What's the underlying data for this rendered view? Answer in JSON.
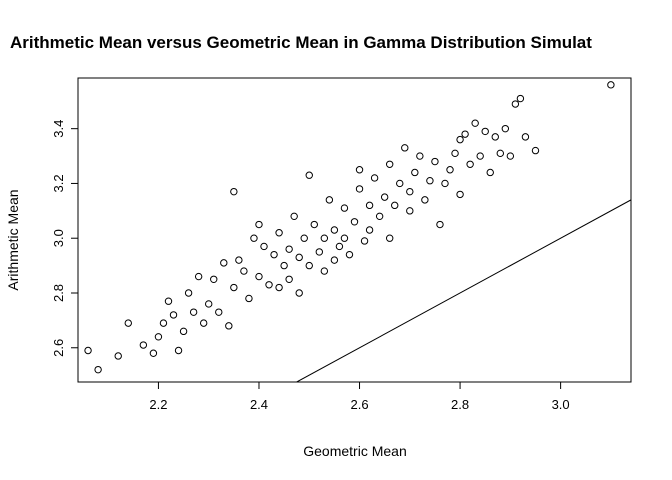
{
  "chart_data": {
    "type": "scatter",
    "title": "Arithmetic Mean versus Geometric Mean in Gamma Distribution Simulat",
    "xlabel": "Geometric Mean",
    "ylabel": "Arithmetic Mean",
    "xlim": [
      2.04,
      3.14
    ],
    "ylim": [
      2.475,
      3.585
    ],
    "xticks": [
      2.2,
      2.4,
      2.6,
      2.8,
      3.0
    ],
    "xtick_labels": [
      "2.2",
      "2.4",
      "2.6",
      "2.8",
      "3.0"
    ],
    "yticks": [
      2.6,
      2.8,
      3.0,
      3.2,
      3.4
    ],
    "ytick_labels": [
      "2.6",
      "2.8",
      "3.0",
      "3.2",
      "3.4"
    ],
    "grid": false,
    "legend": "none",
    "marker": "open-circle",
    "reference_line": {
      "slope": 1,
      "intercept": 0
    },
    "points": [
      [
        2.06,
        2.59
      ],
      [
        2.08,
        2.52
      ],
      [
        2.12,
        2.57
      ],
      [
        2.14,
        2.69
      ],
      [
        2.17,
        2.61
      ],
      [
        2.19,
        2.58
      ],
      [
        2.2,
        2.64
      ],
      [
        2.21,
        2.69
      ],
      [
        2.22,
        2.77
      ],
      [
        2.23,
        2.72
      ],
      [
        2.24,
        2.59
      ],
      [
        2.25,
        2.66
      ],
      [
        2.26,
        2.8
      ],
      [
        2.27,
        2.73
      ],
      [
        2.28,
        2.86
      ],
      [
        2.29,
        2.69
      ],
      [
        2.3,
        2.76
      ],
      [
        2.31,
        2.85
      ],
      [
        2.32,
        2.73
      ],
      [
        2.33,
        2.91
      ],
      [
        2.34,
        2.68
      ],
      [
        2.35,
        3.17
      ],
      [
        2.35,
        2.82
      ],
      [
        2.36,
        2.92
      ],
      [
        2.37,
        2.88
      ],
      [
        2.38,
        2.78
      ],
      [
        2.39,
        3.0
      ],
      [
        2.4,
        2.86
      ],
      [
        2.4,
        3.05
      ],
      [
        2.41,
        2.97
      ],
      [
        2.42,
        2.83
      ],
      [
        2.43,
        2.94
      ],
      [
        2.44,
        2.82
      ],
      [
        2.44,
        3.02
      ],
      [
        2.45,
        2.9
      ],
      [
        2.46,
        2.96
      ],
      [
        2.46,
        2.85
      ],
      [
        2.47,
        3.08
      ],
      [
        2.48,
        2.93
      ],
      [
        2.48,
        2.8
      ],
      [
        2.49,
        3.0
      ],
      [
        2.5,
        3.23
      ],
      [
        2.5,
        2.9
      ],
      [
        2.51,
        3.05
      ],
      [
        2.52,
        2.95
      ],
      [
        2.53,
        3.0
      ],
      [
        2.53,
        2.88
      ],
      [
        2.54,
        3.14
      ],
      [
        2.55,
        3.03
      ],
      [
        2.55,
        2.92
      ],
      [
        2.56,
        2.97
      ],
      [
        2.57,
        3.11
      ],
      [
        2.57,
        3.0
      ],
      [
        2.58,
        2.94
      ],
      [
        2.59,
        3.06
      ],
      [
        2.6,
        3.18
      ],
      [
        2.6,
        3.25
      ],
      [
        2.61,
        2.99
      ],
      [
        2.62,
        3.12
      ],
      [
        2.62,
        3.03
      ],
      [
        2.63,
        3.22
      ],
      [
        2.64,
        3.08
      ],
      [
        2.65,
        3.15
      ],
      [
        2.66,
        3.27
      ],
      [
        2.66,
        3.0
      ],
      [
        2.67,
        3.12
      ],
      [
        2.68,
        3.2
      ],
      [
        2.69,
        3.33
      ],
      [
        2.7,
        3.1
      ],
      [
        2.7,
        3.17
      ],
      [
        2.71,
        3.24
      ],
      [
        2.72,
        3.3
      ],
      [
        2.73,
        3.14
      ],
      [
        2.74,
        3.21
      ],
      [
        2.75,
        3.28
      ],
      [
        2.76,
        3.05
      ],
      [
        2.77,
        3.2
      ],
      [
        2.78,
        3.25
      ],
      [
        2.79,
        3.31
      ],
      [
        2.8,
        3.16
      ],
      [
        2.8,
        3.36
      ],
      [
        2.81,
        3.38
      ],
      [
        2.82,
        3.27
      ],
      [
        2.83,
        3.42
      ],
      [
        2.84,
        3.3
      ],
      [
        2.85,
        3.39
      ],
      [
        2.86,
        3.24
      ],
      [
        2.87,
        3.37
      ],
      [
        2.88,
        3.31
      ],
      [
        2.89,
        3.4
      ],
      [
        2.9,
        3.3
      ],
      [
        2.91,
        3.49
      ],
      [
        2.92,
        3.51
      ],
      [
        2.93,
        3.37
      ],
      [
        2.95,
        3.32
      ],
      [
        3.1,
        3.56
      ]
    ]
  }
}
